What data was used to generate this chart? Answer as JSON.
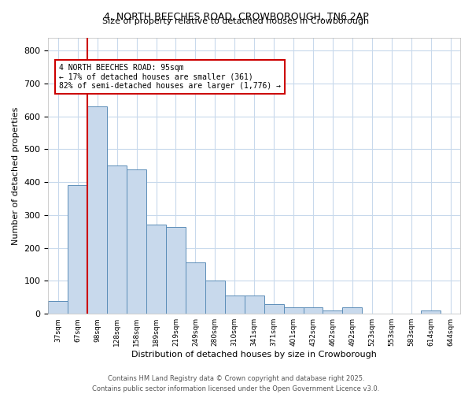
{
  "title_line1": "4, NORTH BEECHES ROAD, CROWBOROUGH, TN6 2AP",
  "title_line2": "Size of property relative to detached houses in Crowborough",
  "xlabel": "Distribution of detached houses by size in Crowborough",
  "ylabel": "Number of detached properties",
  "bar_color": "#c8d9ec",
  "bar_edge_color": "#5b8db8",
  "background_color": "#ffffff",
  "grid_color": "#c8d9ec",
  "annotation_box_color": "#cc0000",
  "annotation_text": "4 NORTH BEECHES ROAD: 95sqm\n← 17% of detached houses are smaller (361)\n82% of semi-detached houses are larger (1,776) →",
  "vertical_line_color": "#cc0000",
  "categories": [
    "37sqm",
    "67sqm",
    "98sqm",
    "128sqm",
    "158sqm",
    "189sqm",
    "219sqm",
    "249sqm",
    "280sqm",
    "310sqm",
    "341sqm",
    "371sqm",
    "401sqm",
    "432sqm",
    "462sqm",
    "492sqm",
    "523sqm",
    "553sqm",
    "583sqm",
    "614sqm",
    "644sqm"
  ],
  "values": [
    40,
    390,
    630,
    450,
    440,
    270,
    265,
    155,
    100,
    55,
    55,
    30,
    20,
    20,
    10,
    20,
    0,
    0,
    0,
    10,
    0
  ],
  "ylim": [
    0,
    840
  ],
  "yticks": [
    0,
    100,
    200,
    300,
    400,
    500,
    600,
    700,
    800
  ],
  "footnote": "Contains HM Land Registry data © Crown copyright and database right 2025.\nContains public sector information licensed under the Open Government Licence v3.0."
}
